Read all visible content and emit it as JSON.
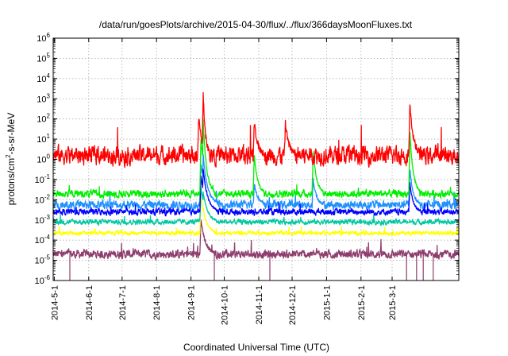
{
  "chart_data": {
    "type": "line",
    "title": "/data/run/goesPlots/archive/2015-04-30/flux/../flux/366daysMoonFluxes.txt",
    "xlabel": "Coordinated Universal Time (UTC)",
    "ylabel_main": "protons/cm",
    "ylabel_sup": "2",
    "ylabel_rest": "-s-sr-MeV",
    "y_scale": "log",
    "ylim_exponents": [
      -6,
      6
    ],
    "y_ticks": [
      {
        "base": "10",
        "exp": "-6",
        "value": -6
      },
      {
        "base": "10",
        "exp": "-5",
        "value": -5
      },
      {
        "base": "10",
        "exp": "-4",
        "value": -4
      },
      {
        "base": "10",
        "exp": "-3",
        "value": -3
      },
      {
        "base": "10",
        "exp": "-2",
        "value": -2
      },
      {
        "base": "10",
        "exp": "-1",
        "value": -1
      },
      {
        "base": "10",
        "exp": "0",
        "value": 0
      },
      {
        "base": "10",
        "exp": "1",
        "value": 1
      },
      {
        "base": "10",
        "exp": "2",
        "value": 2
      },
      {
        "base": "10",
        "exp": "3",
        "value": 3
      },
      {
        "base": "10",
        "exp": "4",
        "value": 4
      },
      {
        "base": "10",
        "exp": "5",
        "value": 5
      },
      {
        "base": "10",
        "exp": "6",
        "value": 6
      }
    ],
    "xlim_dates": [
      "2014-04-30",
      "2015-04-30"
    ],
    "x_ticks": [
      {
        "label": "2014-5-1",
        "date": "2014-05-01"
      },
      {
        "label": "2014-6-1",
        "date": "2014-06-01"
      },
      {
        "label": "2014-7-1",
        "date": "2014-07-01"
      },
      {
        "label": "2014-8-1",
        "date": "2014-08-01"
      },
      {
        "label": "2014-9-1",
        "date": "2014-09-01"
      },
      {
        "label": "2014-10-1",
        "date": "2014-10-01"
      },
      {
        "label": "2014-11-1",
        "date": "2014-11-01"
      },
      {
        "label": "2014-12-1",
        "date": "2014-12-01"
      },
      {
        "label": "2015-1-1",
        "date": "2015-01-01"
      },
      {
        "label": "2015-2-1",
        "date": "2015-02-01"
      },
      {
        "label": "2015-3-1",
        "date": "2015-03-01"
      }
    ],
    "grid": true,
    "series": [
      {
        "color": "#8e3d6e",
        "base_log": -4.7,
        "noise": 0.16,
        "events": [
          {
            "date": "2014-09-10",
            "peak_log": -3.0,
            "width": 4
          }
        ]
      },
      {
        "color": "#ffff00",
        "base_log": -3.65,
        "noise": 0.08,
        "events": [
          {
            "date": "2014-09-10",
            "peak_log": -1.8,
            "width": 4
          },
          {
            "date": "2014-09-12",
            "peak_log": -2.4,
            "width": 3
          }
        ]
      },
      {
        "color": "#00c8a0",
        "base_log": -3.1,
        "noise": 0.1,
        "events": [
          {
            "date": "2014-09-10",
            "peak_log": -1.4,
            "width": 4
          },
          {
            "date": "2014-09-12",
            "peak_log": -1.6,
            "width": 4
          }
        ]
      },
      {
        "color": "#1e90ff",
        "base_log": -2.25,
        "noise": 0.16,
        "events": [
          {
            "date": "2014-09-10",
            "peak_log": -0.2,
            "width": 5
          },
          {
            "date": "2014-09-12",
            "peak_log": 0.2,
            "width": 4
          },
          {
            "date": "2014-10-28",
            "peak_log": -1.2,
            "width": 3
          },
          {
            "date": "2014-12-20",
            "peak_log": -1.0,
            "width": 3
          },
          {
            "date": "2015-03-17",
            "peak_log": -0.5,
            "width": 3
          }
        ]
      },
      {
        "color": "#0000ff",
        "base_log": -2.6,
        "noise": 0.12,
        "events": [
          {
            "date": "2014-09-10",
            "peak_log": -0.8,
            "width": 4
          },
          {
            "date": "2014-09-12",
            "peak_log": -0.5,
            "width": 4
          },
          {
            "date": "2015-03-17",
            "peak_log": -1.2,
            "width": 3
          }
        ]
      },
      {
        "color": "#00ee00",
        "base_log": -1.7,
        "noise": 0.14,
        "events": [
          {
            "date": "2014-09-10",
            "peak_log": 1.0,
            "width": 4
          },
          {
            "date": "2014-09-12",
            "peak_log": 1.9,
            "width": 3
          },
          {
            "date": "2014-10-28",
            "peak_log": 0.2,
            "width": 3
          },
          {
            "date": "2014-12-20",
            "peak_log": 0.4,
            "width": 3
          },
          {
            "date": "2015-03-17",
            "peak_log": 1.3,
            "width": 3
          }
        ]
      },
      {
        "color": "#ff0000",
        "base_log": 0.2,
        "noise": 0.35,
        "events": [
          {
            "date": "2014-09-12",
            "peak_log": 3.3,
            "width": 2
          },
          {
            "date": "2014-09-08",
            "peak_log": 2.1,
            "width": 3
          },
          {
            "date": "2014-10-28",
            "peak_log": 1.8,
            "width": 3
          },
          {
            "date": "2015-03-17",
            "peak_log": 2.7,
            "width": 3
          },
          {
            "date": "2014-11-25",
            "peak_log": 1.8,
            "width": 3
          }
        ]
      }
    ]
  }
}
